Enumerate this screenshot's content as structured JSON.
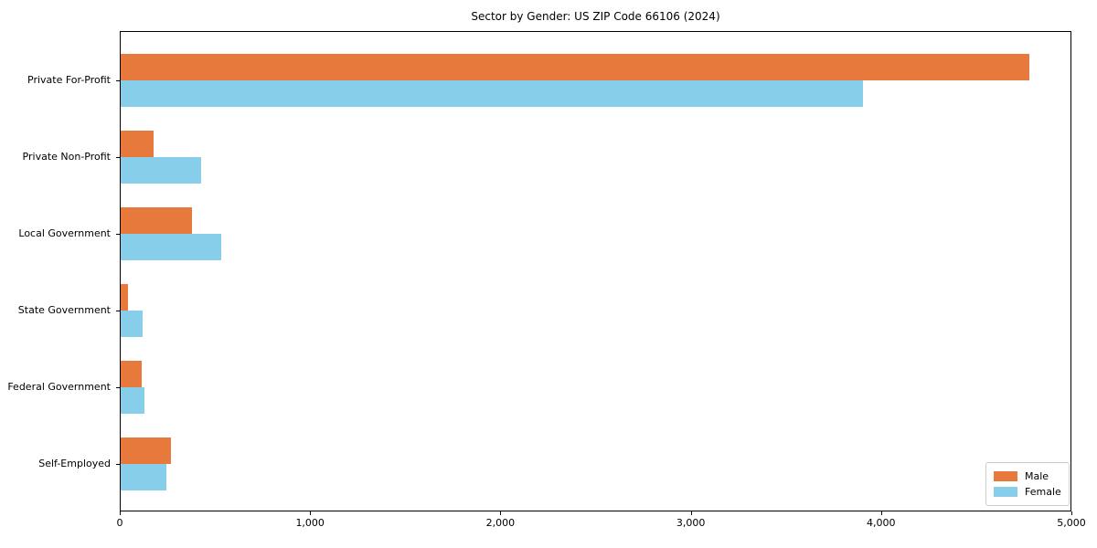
{
  "chart_data": {
    "type": "bar",
    "orientation": "horizontal",
    "title": "Sector by Gender: US ZIP Code 66106 (2024)",
    "categories": [
      "Private For-Profit",
      "Private Non-Profit",
      "Local Government",
      "State Government",
      "Federal Government",
      "Self-Employed"
    ],
    "series": [
      {
        "name": "Male",
        "color": "#e8793d",
        "values": [
          4775,
          175,
          375,
          40,
          110,
          265
        ]
      },
      {
        "name": "Female",
        "color": "#87ceeb",
        "values": [
          3900,
          425,
          530,
          115,
          125,
          240
        ]
      }
    ],
    "xlim": [
      0,
      5000
    ],
    "xticks": [
      0,
      1000,
      2000,
      3000,
      4000,
      5000
    ],
    "xtick_labels": [
      "0",
      "1,000",
      "2,000",
      "3,000",
      "4,000",
      "5,000"
    ],
    "grid": false,
    "legend_position": "lower right",
    "legend_entries": [
      "Male",
      "Female"
    ]
  }
}
